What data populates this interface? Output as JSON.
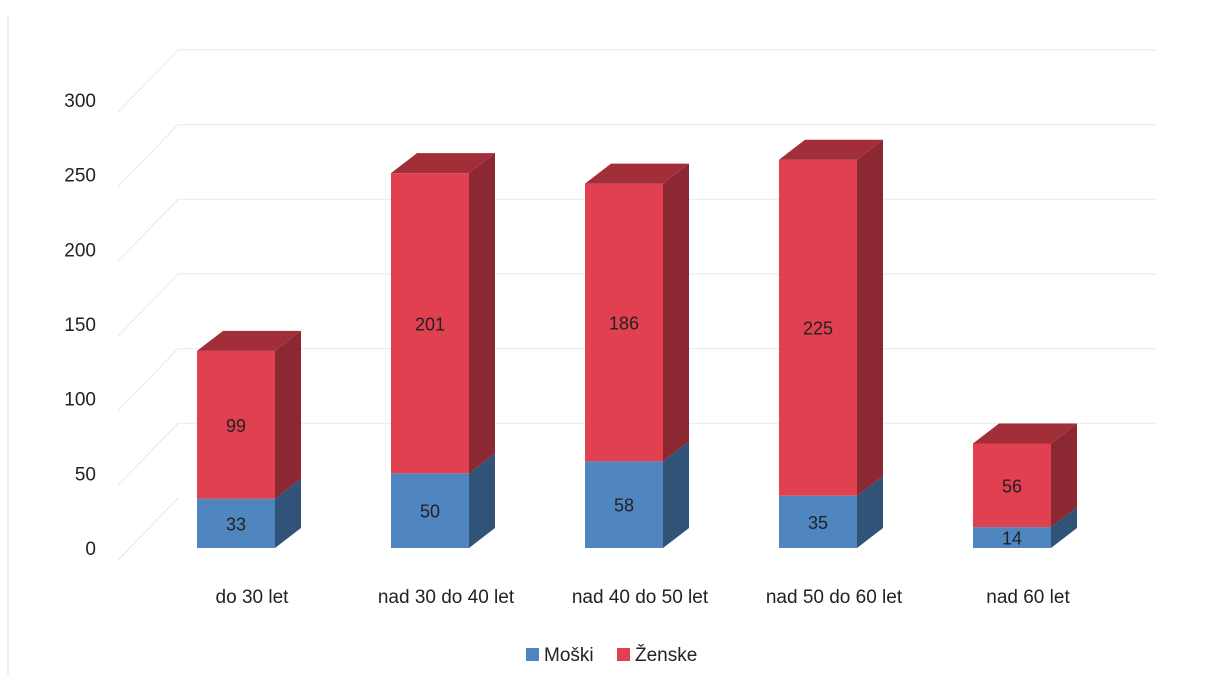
{
  "chart_data": {
    "type": "bar",
    "stacked": true,
    "style": "3d-column",
    "categories": [
      "do 30 let",
      "nad 30 do 40 let",
      "nad 40 do 50 let",
      "nad 50 do 60 let",
      "nad 60 let"
    ],
    "series": [
      {
        "name": "Moški",
        "values": [
          33,
          50,
          58,
          35,
          14
        ],
        "color": "#4f86c0"
      },
      {
        "name": "Ženske",
        "values": [
          99,
          201,
          186,
          225,
          56
        ],
        "color": "#e0404f"
      }
    ],
    "ylim": [
      0,
      300
    ],
    "yticks": [
      "0",
      "50",
      "100",
      "150",
      "200",
      "250",
      "300"
    ],
    "grid": true,
    "legend_position": "bottom"
  }
}
